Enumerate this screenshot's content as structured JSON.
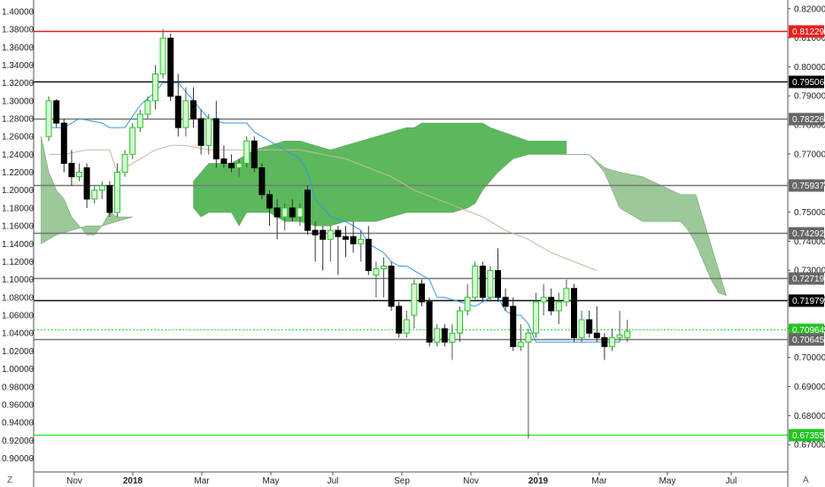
{
  "chart_data": {
    "type": "candlestick",
    "left_axis_ticks": [
      "1.40000",
      "1.38000",
      "1.36000",
      "1.34000",
      "1.32000",
      "1.30000",
      "1.28000",
      "1.26000",
      "1.24000",
      "1.22000",
      "1.20000",
      "1.18000",
      "1.16000",
      "1.14000",
      "1.12000",
      "1.10000",
      "1.08000",
      "1.06000",
      "1.04000",
      "1.02000",
      "1.00000",
      "0.98000",
      "0.96000",
      "0.94000",
      "0.92000",
      "0.90000"
    ],
    "left_axis_range": [
      0.8931,
      1.4083
    ],
    "right_axis_ticks": [
      "0.82000",
      "0.81000",
      "0.80000",
      "0.79000",
      "0.78000",
      "0.77000",
      "0.76000",
      "0.75000",
      "0.74000",
      "0.73000",
      "0.72000",
      "0.71000",
      "0.70000",
      "0.69000",
      "0.68000",
      "0.67000"
    ],
    "right_axis_range": [
      0.6632,
      0.8216
    ],
    "x_ticks": [
      "Nov",
      "2018",
      "Mar",
      "May",
      "Jul",
      "Sep",
      "Nov",
      "2019",
      "Mar",
      "May",
      "Jul"
    ],
    "x_tick_bold": [
      "2018",
      "2019"
    ],
    "bottom_left_label": "Z",
    "bottom_right_label": "A",
    "levels": [
      {
        "value": 0.81229,
        "label": "0.81229",
        "line_color": "#ee1c1c",
        "box_color": "#ee1c1c"
      },
      {
        "value": 0.79506,
        "label": "0.79506",
        "line_color": "#111111",
        "box_color": "#000000"
      },
      {
        "value": 0.78226,
        "label": "0.78226",
        "line_color": "#777777",
        "box_color": "#666666"
      },
      {
        "value": 0.75937,
        "label": "0.75937",
        "line_color": "#777777",
        "box_color": "#666666"
      },
      {
        "value": 0.74292,
        "label": "0.74292",
        "line_color": "#777777",
        "box_color": "#666666"
      },
      {
        "value": 0.72719,
        "label": "0.72719",
        "line_color": "#777777",
        "box_color": "#666666"
      },
      {
        "value": 0.71979,
        "label": "0.71979",
        "line_color": "#111111",
        "box_color": "#000000"
      },
      {
        "value": 0.70964,
        "label": "0.70964",
        "line_color": "#33dd33",
        "box_color": "#22c322",
        "dashed": true
      },
      {
        "value": 0.70645,
        "label": "0.70645",
        "line_color": "#777777",
        "box_color": "#666666"
      },
      {
        "value": 0.67355,
        "label": "0.67355",
        "line_color": "#33ee33",
        "box_color": "#22c322"
      }
    ],
    "colors": {
      "up_body": "#d8f6d6",
      "up_border": "#22cc22",
      "down_body": "#000000",
      "kumo_bull": "#5cb85c",
      "kumo_bear": "#9cc89a",
      "tenkan": "#3399ee",
      "kijun": "#c8b8a0"
    },
    "candles": [
      {
        "t": 1,
        "o": 1.26,
        "h": 1.305,
        "l": 1.255,
        "c": 1.3
      },
      {
        "t": 2,
        "o": 1.3,
        "h": 1.302,
        "l": 1.27,
        "c": 1.275
      },
      {
        "t": 3,
        "o": 1.275,
        "h": 1.28,
        "l": 1.22,
        "c": 1.23
      },
      {
        "t": 4,
        "o": 1.23,
        "h": 1.245,
        "l": 1.205,
        "c": 1.215
      },
      {
        "t": 5,
        "o": 1.215,
        "h": 1.23,
        "l": 1.21,
        "c": 1.22
      },
      {
        "t": 6,
        "o": 1.225,
        "h": 1.23,
        "l": 1.18,
        "c": 1.19
      },
      {
        "t": 7,
        "o": 1.19,
        "h": 1.205,
        "l": 1.185,
        "c": 1.2
      },
      {
        "t": 8,
        "o": 1.2,
        "h": 1.21,
        "l": 1.19,
        "c": 1.205
      },
      {
        "t": 9,
        "o": 1.205,
        "h": 1.21,
        "l": 1.17,
        "c": 1.175
      },
      {
        "t": 10,
        "o": 1.175,
        "h": 1.23,
        "l": 1.17,
        "c": 1.22
      },
      {
        "t": 11,
        "o": 1.22,
        "h": 1.245,
        "l": 1.215,
        "c": 1.24
      },
      {
        "t": 12,
        "o": 1.24,
        "h": 1.275,
        "l": 1.235,
        "c": 1.27
      },
      {
        "t": 13,
        "o": 1.27,
        "h": 1.29,
        "l": 1.265,
        "c": 1.285
      },
      {
        "t": 14,
        "o": 1.285,
        "h": 1.305,
        "l": 1.28,
        "c": 1.3
      },
      {
        "t": 15,
        "o": 1.3,
        "h": 1.34,
        "l": 1.29,
        "c": 1.33
      },
      {
        "t": 16,
        "o": 1.33,
        "h": 1.38,
        "l": 1.325,
        "c": 1.37
      },
      {
        "t": 17,
        "o": 1.37,
        "h": 1.375,
        "l": 1.3,
        "c": 1.305
      },
      {
        "t": 18,
        "o": 1.305,
        "h": 1.33,
        "l": 1.26,
        "c": 1.27
      },
      {
        "t": 19,
        "o": 1.27,
        "h": 1.315,
        "l": 1.26,
        "c": 1.3
      },
      {
        "t": 20,
        "o": 1.3,
        "h": 1.315,
        "l": 1.27,
        "c": 1.28
      },
      {
        "t": 21,
        "o": 1.28,
        "h": 1.29,
        "l": 1.24,
        "c": 1.25
      },
      {
        "t": 22,
        "o": 1.25,
        "h": 1.285,
        "l": 1.24,
        "c": 1.28
      },
      {
        "t": 23,
        "o": 1.28,
        "h": 1.3,
        "l": 1.225,
        "c": 1.235
      },
      {
        "t": 24,
        "o": 1.235,
        "h": 1.25,
        "l": 1.225,
        "c": 1.23
      },
      {
        "t": 25,
        "o": 1.23,
        "h": 1.24,
        "l": 1.22,
        "c": 1.225
      },
      {
        "t": 26,
        "o": 1.225,
        "h": 1.235,
        "l": 1.215,
        "c": 1.23
      },
      {
        "t": 27,
        "o": 1.23,
        "h": 1.26,
        "l": 1.225,
        "c": 1.255
      },
      {
        "t": 28,
        "o": 1.255,
        "h": 1.26,
        "l": 1.22,
        "c": 1.225
      },
      {
        "t": 29,
        "o": 1.225,
        "h": 1.23,
        "l": 1.19,
        "c": 1.195
      },
      {
        "t": 30,
        "o": 1.195,
        "h": 1.2,
        "l": 1.16,
        "c": 1.18
      },
      {
        "t": 31,
        "o": 1.18,
        "h": 1.19,
        "l": 1.145,
        "c": 1.17
      },
      {
        "t": 32,
        "o": 1.17,
        "h": 1.185,
        "l": 1.155,
        "c": 1.18
      },
      {
        "t": 33,
        "o": 1.18,
        "h": 1.19,
        "l": 1.165,
        "c": 1.17
      },
      {
        "t": 34,
        "o": 1.17,
        "h": 1.185,
        "l": 1.16,
        "c": 1.18
      },
      {
        "t": 35,
        "o": 1.2,
        "h": 1.205,
        "l": 1.15,
        "c": 1.155
      },
      {
        "t": 36,
        "o": 1.155,
        "h": 1.165,
        "l": 1.12,
        "c": 1.15
      },
      {
        "t": 37,
        "o": 1.155,
        "h": 1.16,
        "l": 1.11,
        "c": 1.145
      },
      {
        "t": 38,
        "o": 1.145,
        "h": 1.16,
        "l": 1.12,
        "c": 1.155
      },
      {
        "t": 39,
        "o": 1.155,
        "h": 1.16,
        "l": 1.105,
        "c": 1.148
      },
      {
        "t": 40,
        "o": 1.148,
        "h": 1.16,
        "l": 1.125,
        "c": 1.145
      },
      {
        "t": 41,
        "o": 1.148,
        "h": 1.165,
        "l": 1.13,
        "c": 1.14
      },
      {
        "t": 42,
        "o": 1.14,
        "h": 1.155,
        "l": 1.12,
        "c": 1.145
      },
      {
        "t": 43,
        "o": 1.145,
        "h": 1.16,
        "l": 1.105,
        "c": 1.11
      },
      {
        "t": 44,
        "o": 1.105,
        "h": 1.12,
        "l": 1.08,
        "c": 1.112
      },
      {
        "t": 45,
        "o": 1.112,
        "h": 1.125,
        "l": 1.08,
        "c": 1.115
      },
      {
        "t": 46,
        "o": 1.115,
        "h": 1.12,
        "l": 1.065,
        "c": 1.07
      },
      {
        "t": 47,
        "o": 1.07,
        "h": 1.075,
        "l": 1.035,
        "c": 1.04
      },
      {
        "t": 48,
        "o": 1.04,
        "h": 1.065,
        "l": 1.035,
        "c": 1.055
      },
      {
        "t": 49,
        "o": 1.06,
        "h": 1.1,
        "l": 1.045,
        "c": 1.095
      },
      {
        "t": 50,
        "o": 1.095,
        "h": 1.1,
        "l": 1.07,
        "c": 1.075
      },
      {
        "t": 51,
        "o": 1.075,
        "h": 1.08,
        "l": 1.025,
        "c": 1.03
      },
      {
        "t": 52,
        "o": 1.03,
        "h": 1.05,
        "l": 1.025,
        "c": 1.045
      },
      {
        "t": 53,
        "o": 1.045,
        "h": 1.05,
        "l": 1.025,
        "c": 1.03
      },
      {
        "t": 54,
        "o": 1.03,
        "h": 1.05,
        "l": 1.01,
        "c": 1.04
      },
      {
        "t": 55,
        "o": 1.04,
        "h": 1.07,
        "l": 1.03,
        "c": 1.065
      },
      {
        "t": 56,
        "o": 1.065,
        "h": 1.095,
        "l": 1.06,
        "c": 1.08
      },
      {
        "t": 57,
        "o": 1.08,
        "h": 1.12,
        "l": 1.075,
        "c": 1.115
      },
      {
        "t": 58,
        "o": 1.115,
        "h": 1.12,
        "l": 1.075,
        "c": 1.08
      },
      {
        "t": 59,
        "o": 1.08,
        "h": 1.115,
        "l": 1.075,
        "c": 1.11
      },
      {
        "t": 60,
        "o": 1.11,
        "h": 1.135,
        "l": 1.075,
        "c": 1.08
      },
      {
        "t": 61,
        "o": 1.08,
        "h": 1.09,
        "l": 1.065,
        "c": 1.07
      },
      {
        "t": 62,
        "o": 1.07,
        "h": 1.08,
        "l": 1.02,
        "c": 1.025
      },
      {
        "t": 63,
        "o": 1.025,
        "h": 1.05,
        "l": 1.02,
        "c": 1.03
      },
      {
        "t": 64,
        "o": 1.03,
        "h": 1.045,
        "l": 0.922,
        "c": 1.04
      },
      {
        "t": 65,
        "o": 1.04,
        "h": 1.085,
        "l": 1.035,
        "c": 1.075
      },
      {
        "t": 66,
        "o": 1.075,
        "h": 1.095,
        "l": 1.06,
        "c": 1.08
      },
      {
        "t": 67,
        "o": 1.08,
        "h": 1.09,
        "l": 1.06,
        "c": 1.065
      },
      {
        "t": 68,
        "o": 1.065,
        "h": 1.085,
        "l": 1.05,
        "c": 1.075
      },
      {
        "t": 69,
        "o": 1.075,
        "h": 1.1,
        "l": 1.07,
        "c": 1.09
      },
      {
        "t": 70,
        "o": 1.09,
        "h": 1.095,
        "l": 1.03,
        "c": 1.035
      },
      {
        "t": 71,
        "o": 1.035,
        "h": 1.065,
        "l": 1.03,
        "c": 1.055
      },
      {
        "t": 72,
        "o": 1.055,
        "h": 1.065,
        "l": 1.035,
        "c": 1.04
      },
      {
        "t": 73,
        "o": 1.04,
        "h": 1.07,
        "l": 1.03,
        "c": 1.035
      },
      {
        "t": 74,
        "o": 1.035,
        "h": 1.04,
        "l": 1.01,
        "c": 1.025
      },
      {
        "t": 75,
        "o": 1.025,
        "h": 1.045,
        "l": 1.02,
        "c": 1.035
      },
      {
        "t": 76,
        "o": 1.035,
        "h": 1.065,
        "l": 1.03,
        "c": 1.038
      },
      {
        "t": 77,
        "o": 1.035,
        "h": 1.055,
        "l": 1.03,
        "c": 1.042
      }
    ],
    "tenkan": [
      [
        1,
        1.27
      ],
      [
        3,
        1.27
      ],
      [
        5,
        1.28
      ],
      [
        8,
        1.275
      ],
      [
        9,
        1.27
      ],
      [
        10,
        1.27
      ],
      [
        11,
        1.27
      ],
      [
        13,
        1.295
      ],
      [
        15,
        1.31
      ],
      [
        16,
        1.32
      ],
      [
        18,
        1.32
      ],
      [
        20,
        1.3
      ],
      [
        22,
        1.28
      ],
      [
        24,
        1.275
      ],
      [
        27,
        1.275
      ],
      [
        28,
        1.265
      ],
      [
        30,
        1.255
      ],
      [
        31,
        1.25
      ],
      [
        33,
        1.24
      ],
      [
        34,
        1.235
      ],
      [
        35,
        1.22
      ],
      [
        36,
        1.19
      ],
      [
        38,
        1.17
      ],
      [
        40,
        1.165
      ],
      [
        41,
        1.16
      ],
      [
        42,
        1.155
      ],
      [
        43,
        1.14
      ],
      [
        44,
        1.135
      ],
      [
        45,
        1.13
      ],
      [
        46,
        1.12
      ],
      [
        47,
        1.115
      ],
      [
        48,
        1.115
      ],
      [
        49,
        1.11
      ],
      [
        51,
        1.1
      ],
      [
        52,
        1.08
      ],
      [
        53,
        1.08
      ],
      [
        55,
        1.075
      ],
      [
        57,
        1.07
      ],
      [
        59,
        1.08
      ],
      [
        60,
        1.08
      ],
      [
        61,
        1.065
      ],
      [
        62,
        1.06
      ],
      [
        63,
        1.06
      ],
      [
        64,
        1.05
      ],
      [
        65,
        1.03
      ],
      [
        66,
        1.03
      ],
      [
        70,
        1.03
      ],
      [
        71,
        1.03
      ],
      [
        74,
        1.03
      ],
      [
        76,
        1.03
      ]
    ],
    "kijun": [
      [
        1,
        1.24
      ],
      [
        3,
        1.24
      ],
      [
        6,
        1.245
      ],
      [
        9,
        1.245
      ],
      [
        10,
        1.22
      ],
      [
        13,
        1.235
      ],
      [
        15,
        1.245
      ],
      [
        17,
        1.25
      ],
      [
        19,
        1.25
      ],
      [
        22,
        1.245
      ],
      [
        25,
        1.245
      ],
      [
        28,
        1.245
      ],
      [
        31,
        1.245
      ],
      [
        34,
        1.245
      ],
      [
        37,
        1.24
      ],
      [
        40,
        1.235
      ],
      [
        43,
        1.225
      ],
      [
        46,
        1.215
      ],
      [
        49,
        1.2
      ],
      [
        52,
        1.19
      ],
      [
        55,
        1.18
      ],
      [
        58,
        1.17
      ],
      [
        61,
        1.155
      ],
      [
        64,
        1.145
      ],
      [
        67,
        1.13
      ],
      [
        70,
        1.12
      ],
      [
        73,
        1.11
      ]
    ],
    "kumo_bull": {
      "span_a": [
        [
          20,
          1.21
        ],
        [
          21,
          1.22
        ],
        [
          22,
          1.23
        ],
        [
          25,
          1.23
        ],
        [
          26,
          1.235
        ],
        [
          28,
          1.245
        ],
        [
          30,
          1.25
        ],
        [
          32,
          1.255
        ],
        [
          34,
          1.255
        ],
        [
          36,
          1.25
        ],
        [
          38,
          1.245
        ],
        [
          40,
          1.25
        ],
        [
          42,
          1.255
        ],
        [
          44,
          1.26
        ],
        [
          46,
          1.265
        ],
        [
          48,
          1.27
        ],
        [
          49,
          1.27
        ],
        [
          50,
          1.275
        ],
        [
          58,
          1.275
        ],
        [
          59,
          1.27
        ],
        [
          64,
          1.255
        ],
        [
          69,
          1.255
        ]
      ],
      "span_b": [
        [
          20,
          1.18
        ],
        [
          21,
          1.17
        ],
        [
          22,
          1.175
        ],
        [
          25,
          1.175
        ],
        [
          26,
          1.16
        ],
        [
          27,
          1.175
        ],
        [
          30,
          1.175
        ],
        [
          32,
          1.165
        ],
        [
          34,
          1.165
        ],
        [
          36,
          1.16
        ],
        [
          38,
          1.16
        ],
        [
          40,
          1.165
        ],
        [
          42,
          1.165
        ],
        [
          44,
          1.165
        ],
        [
          46,
          1.17
        ],
        [
          48,
          1.175
        ],
        [
          50,
          1.175
        ],
        [
          52,
          1.175
        ],
        [
          54,
          1.175
        ],
        [
          56,
          1.18
        ],
        [
          57,
          1.185
        ],
        [
          58,
          1.2
        ],
        [
          60,
          1.22
        ],
        [
          62,
          1.235
        ],
        [
          64,
          1.24
        ],
        [
          69,
          1.24
        ]
      ]
    },
    "kumo_bear": {
      "span_a": [
        [
          69,
          1.24
        ],
        [
          72,
          1.24
        ],
        [
          74,
          1.225
        ],
        [
          76,
          1.22
        ],
        [
          79,
          1.215
        ],
        [
          84,
          1.195
        ],
        [
          86,
          1.195
        ]
      ],
      "span_b": [
        [
          69,
          1.24
        ],
        [
          72,
          1.24
        ],
        [
          74,
          1.22
        ],
        [
          75,
          1.2
        ],
        [
          76,
          1.18
        ],
        [
          78,
          1.17
        ],
        [
          79,
          1.165
        ],
        [
          84,
          1.165
        ],
        [
          85,
          1.155
        ],
        [
          86,
          1.14
        ],
        [
          87,
          1.12
        ],
        [
          88,
          1.1
        ],
        [
          89,
          1.085
        ],
        [
          90,
          1.082
        ]
      ]
    },
    "kumo_early": {
      "upper": [
        [
          0,
          1.26
        ],
        [
          1,
          1.22
        ],
        [
          2,
          1.2
        ],
        [
          3,
          1.19
        ],
        [
          4,
          1.17
        ],
        [
          5,
          1.16
        ],
        [
          6,
          1.15
        ],
        [
          7,
          1.15
        ],
        [
          8,
          1.16
        ],
        [
          9,
          1.175
        ],
        [
          10,
          1.17
        ],
        [
          11,
          1.17
        ],
        [
          12,
          1.17
        ]
      ],
      "lower": [
        [
          0,
          1.14
        ],
        [
          2,
          1.15
        ],
        [
          4,
          1.155
        ],
        [
          6,
          1.16
        ],
        [
          8,
          1.16
        ],
        [
          10,
          1.165
        ],
        [
          12,
          1.17
        ]
      ]
    }
  }
}
